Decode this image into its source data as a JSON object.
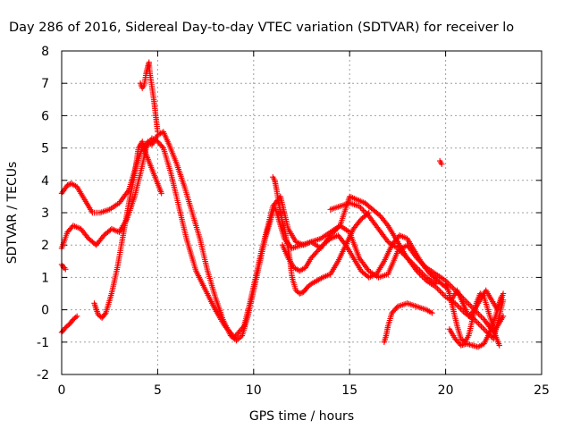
{
  "chart_data": {
    "type": "scatter",
    "title": "Day 286 of 2016, Sidereal Day-to-day VTEC variation (SDTVAR) for receiver lo",
    "xlabel": "GPS time / hours",
    "ylabel": "SDTVAR / TECUs",
    "xlim": [
      0,
      25
    ],
    "ylim": [
      -2,
      8
    ],
    "xticks": [
      "0",
      "5",
      "10",
      "15",
      "20",
      "25"
    ],
    "yticks": [
      "-2",
      "-1",
      "0",
      "1",
      "2",
      "3",
      "4",
      "5",
      "6",
      "7",
      "8"
    ],
    "grid": true,
    "marker": "plus",
    "color": "#ff0000",
    "series": [
      {
        "x": [
          0.0,
          0.3,
          0.5,
          0.8,
          1.2,
          1.6,
          2.0,
          2.5,
          3.0,
          3.5,
          3.9,
          4.2,
          4.5,
          4.7,
          5.0,
          5.3,
          5.6,
          6.0,
          6.4,
          6.8,
          7.2,
          7.6,
          8.0,
          8.4,
          8.8,
          9.1,
          9.4,
          9.7,
          10.0,
          10.3,
          10.6,
          10.9,
          11.1,
          11.3,
          11.6,
          12.0,
          12.5,
          13.0,
          13.5,
          14.0,
          14.5,
          15.0,
          15.4,
          15.8,
          16.2,
          16.6,
          17.0,
          17.5,
          18.0,
          18.5,
          19.0,
          19.5,
          20.0,
          20.5,
          21.0,
          21.5,
          22.0,
          22.5,
          23.0
        ],
        "y": [
          3.6,
          3.85,
          3.9,
          3.8,
          3.4,
          3.0,
          3.0,
          3.1,
          3.3,
          3.7,
          4.5,
          5.0,
          5.2,
          5.1,
          5.4,
          5.5,
          5.1,
          4.5,
          3.8,
          3.0,
          2.2,
          1.2,
          0.4,
          -0.3,
          -0.8,
          -0.95,
          -0.8,
          -0.2,
          0.6,
          1.4,
          2.2,
          2.8,
          3.2,
          2.8,
          2.2,
          1.9,
          2.0,
          2.1,
          2.2,
          2.4,
          2.6,
          3.5,
          3.4,
          3.3,
          3.1,
          2.9,
          2.6,
          2.1,
          1.6,
          1.2,
          0.9,
          0.7,
          0.4,
          0.2,
          -0.1,
          -0.3,
          -0.6,
          -0.9,
          0.3
        ]
      },
      {
        "x": [
          0.0,
          0.3,
          0.6,
          1.0,
          1.4,
          1.8,
          2.2,
          2.6,
          3.0,
          3.4,
          3.8,
          4.1,
          4.4,
          4.7,
          5.0,
          5.3,
          5.7,
          6.1,
          6.5,
          7.0,
          7.5,
          8.0,
          8.5,
          9.0,
          9.5,
          9.8,
          10.1,
          10.4,
          10.7,
          11.0,
          11.4,
          11.8,
          12.2,
          12.6,
          13.0,
          13.5,
          14.0,
          14.5,
          15.0,
          15.5,
          16.0,
          16.5,
          17.0,
          17.5,
          18.0,
          18.5,
          19.0,
          19.5,
          20.0,
          20.5,
          21.0,
          21.5,
          22.0,
          22.5,
          23.0
        ],
        "y": [
          1.9,
          2.4,
          2.6,
          2.5,
          2.2,
          2.0,
          2.3,
          2.5,
          2.4,
          2.8,
          3.5,
          4.2,
          5.0,
          5.3,
          5.2,
          5.0,
          4.2,
          3.2,
          2.2,
          1.2,
          0.6,
          0.0,
          -0.5,
          -0.85,
          -0.5,
          0.2,
          1.0,
          1.8,
          2.5,
          3.2,
          3.5,
          2.5,
          2.1,
          2.0,
          2.1,
          1.9,
          2.3,
          2.6,
          2.4,
          1.6,
          1.2,
          1.0,
          1.1,
          1.8,
          2.0,
          1.6,
          1.3,
          1.1,
          0.9,
          0.6,
          0.3,
          0.0,
          -0.3,
          -0.7,
          -0.2
        ]
      },
      {
        "x": [
          0.0,
          0.2,
          0.4,
          0.6,
          0.8
        ],
        "y": [
          -0.7,
          -0.55,
          -0.45,
          -0.3,
          -0.2
        ]
      },
      {
        "x": [
          0.0,
          0.05,
          0.1,
          0.15,
          0.2
        ],
        "y": [
          1.4,
          1.35,
          1.3,
          1.3,
          1.25
        ]
      },
      {
        "x": [
          1.7,
          1.9,
          2.1,
          2.3,
          2.6,
          2.9,
          3.2,
          3.5,
          3.8,
          4.0,
          4.2,
          4.4,
          4.6,
          4.8,
          5.0,
          5.2
        ],
        "y": [
          0.2,
          -0.15,
          -0.25,
          -0.1,
          0.5,
          1.3,
          2.3,
          3.3,
          4.2,
          5.0,
          5.2,
          4.8,
          4.5,
          4.2,
          3.9,
          3.6
        ]
      },
      {
        "x": [
          4.1,
          4.2,
          4.3,
          4.4,
          4.5,
          4.55,
          4.6,
          4.7,
          4.8,
          4.9,
          5.0
        ],
        "y": [
          7.0,
          6.85,
          6.95,
          7.3,
          7.55,
          7.65,
          7.3,
          6.9,
          6.5,
          6.0,
          5.5
        ]
      },
      {
        "x": [
          11.0,
          11.1,
          11.2,
          11.3,
          11.4,
          11.5,
          11.6,
          11.7,
          11.8,
          11.9,
          12.0,
          12.2,
          12.4,
          12.6,
          12.8,
          13.0,
          13.3,
          13.6,
          14.0,
          14.4,
          14.8,
          15.2,
          15.6,
          16.0
        ],
        "y": [
          4.1,
          4.0,
          3.7,
          3.3,
          3.0,
          2.7,
          2.5,
          2.2,
          1.9,
          1.5,
          1.0,
          0.6,
          0.5,
          0.55,
          0.7,
          0.8,
          0.9,
          1.0,
          1.1,
          1.5,
          2.0,
          2.5,
          2.8,
          3.0
        ]
      },
      {
        "x": [
          11.5,
          11.8,
          12.1,
          12.4,
          12.7,
          13.0,
          13.3,
          13.6,
          14.0,
          14.4,
          14.8,
          15.2,
          15.6,
          16.0,
          16.4,
          16.8,
          17.2,
          17.6,
          18.0,
          18.4,
          18.8,
          19.2,
          19.6,
          20.0
        ],
        "y": [
          2.0,
          1.6,
          1.3,
          1.2,
          1.3,
          1.6,
          1.8,
          2.0,
          2.2,
          2.3,
          2.0,
          1.6,
          1.2,
          1.0,
          1.1,
          1.5,
          2.0,
          2.3,
          2.2,
          1.8,
          1.4,
          1.1,
          0.9,
          0.7
        ]
      },
      {
        "x": [
          14.0,
          14.5,
          15.0,
          15.5,
          16.0,
          16.5,
          17.0,
          17.5,
          18.0,
          18.5,
          19.0,
          19.5
        ],
        "y": [
          3.1,
          3.2,
          3.3,
          3.2,
          2.9,
          2.5,
          2.1,
          1.9,
          1.6,
          1.3,
          1.0,
          0.8
        ]
      },
      {
        "x": [
          16.8,
          16.9,
          17.0,
          17.2,
          17.5,
          18.0,
          18.5,
          19.0,
          19.3
        ],
        "y": [
          -1.0,
          -0.8,
          -0.5,
          -0.1,
          0.1,
          0.2,
          0.1,
          0.0,
          -0.1
        ]
      },
      {
        "x": [
          19.7,
          19.8
        ],
        "y": [
          4.6,
          4.5
        ]
      },
      {
        "x": [
          20.0,
          20.2,
          20.4,
          20.6,
          20.8,
          21.0,
          21.2,
          21.4,
          21.6,
          21.8,
          22.0,
          22.2,
          22.4,
          22.6,
          22.8
        ],
        "y": [
          0.8,
          0.5,
          0.0,
          -0.5,
          -0.9,
          -1.0,
          -0.8,
          -0.3,
          0.2,
          0.5,
          0.4,
          0.0,
          -0.4,
          -0.8,
          -1.1
        ]
      },
      {
        "x": [
          20.2,
          20.5,
          20.8,
          21.1,
          21.4,
          21.7,
          22.0,
          22.3,
          22.6,
          22.9
        ],
        "y": [
          -0.6,
          -0.9,
          -1.1,
          -1.05,
          -1.1,
          -1.15,
          -1.05,
          -0.7,
          -0.2,
          0.4
        ]
      },
      {
        "x": [
          20.3,
          20.6,
          20.9,
          21.2,
          21.5,
          21.8,
          22.1,
          22.4,
          22.7,
          23.0
        ],
        "y": [
          0.3,
          0.6,
          0.2,
          -0.2,
          0.0,
          0.3,
          0.6,
          0.3,
          0.0,
          0.5
        ]
      }
    ]
  }
}
